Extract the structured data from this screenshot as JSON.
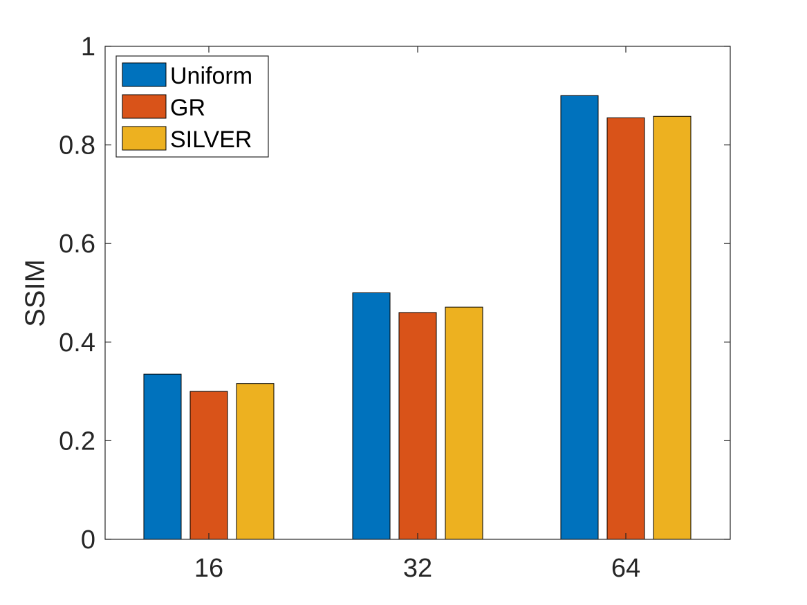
{
  "chart_data": {
    "type": "bar",
    "categories": [
      "16",
      "32",
      "64"
    ],
    "series": [
      {
        "name": "Uniform",
        "color": "#0072BD",
        "values": [
          0.335,
          0.5,
          0.9
        ]
      },
      {
        "name": "GR",
        "color": "#D95319",
        "values": [
          0.3,
          0.46,
          0.855
        ]
      },
      {
        "name": "SILVER",
        "color": "#EDB120",
        "values": [
          0.316,
          0.471,
          0.858
        ]
      }
    ],
    "title": "",
    "xlabel": "",
    "ylabel": "SSIM",
    "ylim": [
      0,
      1
    ],
    "yticks": [
      0,
      0.2,
      0.4,
      0.6,
      0.8,
      1
    ],
    "ytick_labels": [
      "0",
      "0.2",
      "0.4",
      "0.6",
      "0.8",
      "1"
    ],
    "grid": false,
    "legend_position": "top-left"
  }
}
